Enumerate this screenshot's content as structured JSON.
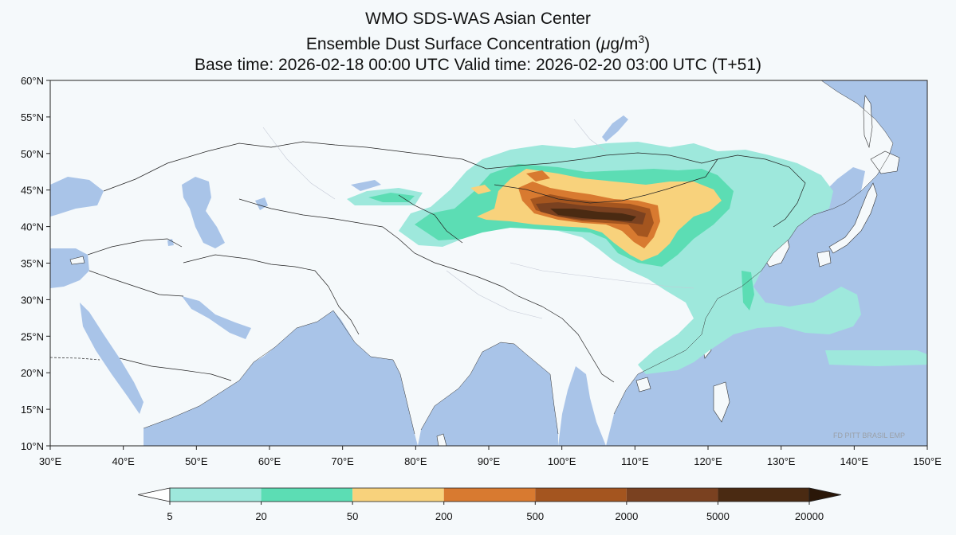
{
  "title": {
    "line1": "WMO SDS-WAS Asian Center",
    "line2_prefix": "Ensemble Dust Surface Concentration (",
    "line2_unit_mu": "μ",
    "line2_unit_rest": "g/m",
    "line2_unit_exp": "3",
    "line2_suffix": ")",
    "line3": "Base time: 2026-02-18 00:00 UTC Valid time: 2026-02-20 03:00 UTC (T+51)"
  },
  "axes": {
    "lon_ticks": [
      "30°E",
      "40°E",
      "50°E",
      "60°E",
      "70°E",
      "80°E",
      "90°E",
      "100°E",
      "110°E",
      "120°E",
      "130°E",
      "140°E",
      "150°E"
    ],
    "lat_ticks": [
      "60°N",
      "55°N",
      "50°N",
      "45°N",
      "40°N",
      "35°N",
      "30°N",
      "25°N",
      "20°N",
      "15°N",
      "10°N"
    ],
    "lon_range": [
      30,
      150
    ],
    "lat_range": [
      10,
      60
    ]
  },
  "colorbar": {
    "levels": [
      "5",
      "20",
      "50",
      "200",
      "500",
      "2000",
      "5000",
      "20000"
    ],
    "colors": [
      "#9ee8dc",
      "#5cddb4",
      "#f8d27c",
      "#d87a30",
      "#a4551f",
      "#7a4120",
      "#4a2a12",
      "#2a1708"
    ],
    "extend": "both"
  },
  "colors": {
    "ocean": "#a9c4e8",
    "land": "#f5f9fb",
    "border": "#222222"
  },
  "watermark": "FD PITT BRASIL EMP"
}
